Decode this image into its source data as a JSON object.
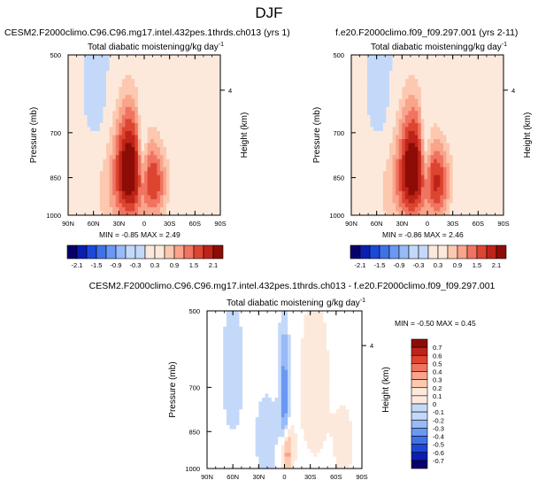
{
  "title": "DJF",
  "colors": {
    "div_scale": [
      "#08006a",
      "#0a1fb0",
      "#1c48d8",
      "#3f72e8",
      "#6b98f2",
      "#98baf6",
      "#c4d9fa",
      "#ffffff",
      "#fde9dc",
      "#fcc9b0",
      "#f9a48b",
      "#f07461",
      "#dc4530",
      "#be2319",
      "#8e0c06"
    ],
    "diff_scale": [
      "#08006a",
      "#0a1fb0",
      "#1c48d8",
      "#3f72e8",
      "#6b98f2",
      "#98baf6",
      "#c4d9fa",
      "#ffffff",
      "#fde9dc",
      "#fcc9b0",
      "#f9a48b",
      "#f07461",
      "#dc4530",
      "#be2319",
      "#8e0c06"
    ]
  },
  "chart_data": [
    {
      "type": "heatmap",
      "title": "CESM2.F2000climo.C96.C96.mg17.intel.432pes.1thrds.ch013 (yrs 1)",
      "field": "Total diabatic moistening",
      "units": "g/kg day",
      "units_exp": "-1",
      "xlabel": "",
      "ylabel": "Pressure (mb)",
      "right_label": "Height (km)",
      "right_tick": "4",
      "x_ticks": [
        "90N",
        "60N",
        "30N",
        "0",
        "30S",
        "60S",
        "90S"
      ],
      "y_ticks": [
        "500",
        "700",
        "850",
        "1000"
      ],
      "ylim": [
        1000,
        500
      ],
      "stats": {
        "min_label": "MIN =",
        "min": "-0.85",
        "max_label": "MAX =",
        "max": "2.49"
      },
      "colorbar_ticks": [
        "-2.1",
        "-1.5",
        "-0.9",
        "-0.3",
        "0.3",
        "0.9",
        "1.5",
        "2.1"
      ],
      "features": [
        {
          "lat": 18,
          "p": 820,
          "value": 2.3,
          "sx": 12,
          "sp": 150
        },
        {
          "lat": -12,
          "p": 870,
          "value": 1.5,
          "sx": 11,
          "sp": 110
        },
        {
          "lat": 2,
          "p": 760,
          "value": -0.8,
          "sx": 4,
          "sp": 120
        },
        {
          "lat": 55,
          "p": 580,
          "value": -0.25,
          "sx": 8,
          "sp": 120
        },
        {
          "lat": -50,
          "p": 700,
          "value": 0.3,
          "sx": 12,
          "sp": 200
        },
        {
          "lat": 45,
          "p": 900,
          "value": 0.5,
          "sx": 14,
          "sp": 140
        }
      ]
    },
    {
      "type": "heatmap",
      "title": "f.e20.F2000climo.f09_f09.297.001 (yrs 2-11)",
      "field": "Total diabatic moistening",
      "units": "g/kg day",
      "units_exp": "-1",
      "xlabel": "",
      "ylabel": "Pressure (mb)",
      "right_label": "Height (km)",
      "right_tick": "4",
      "x_ticks": [
        "90N",
        "60N",
        "30N",
        "0",
        "30S",
        "60S",
        "90S"
      ],
      "y_ticks": [
        "500",
        "700",
        "850",
        "1000"
      ],
      "ylim": [
        1000,
        500
      ],
      "stats": {
        "min_label": "MIN =",
        "min": "-0.86",
        "max_label": "MAX =",
        "max": "2.46"
      },
      "colorbar_ticks": [
        "-2.1",
        "-1.5",
        "-0.9",
        "-0.3",
        "0.3",
        "0.9",
        "1.5",
        "2.1"
      ],
      "features": [
        {
          "lat": 18,
          "p": 820,
          "value": 2.25,
          "sx": 12,
          "sp": 150
        },
        {
          "lat": -12,
          "p": 870,
          "value": 1.6,
          "sx": 11,
          "sp": 110
        },
        {
          "lat": 2,
          "p": 760,
          "value": -0.8,
          "sx": 4,
          "sp": 120
        },
        {
          "lat": 55,
          "p": 580,
          "value": -0.25,
          "sx": 8,
          "sp": 120
        },
        {
          "lat": -50,
          "p": 700,
          "value": 0.3,
          "sx": 12,
          "sp": 200
        },
        {
          "lat": 45,
          "p": 900,
          "value": 0.5,
          "sx": 14,
          "sp": 140
        }
      ]
    },
    {
      "type": "heatmap",
      "title": "CESM2.F2000climo.C96.C96.mg17.intel.432pes.1thrds.ch013 - f.e20.F2000climo.f09_f09.297.001",
      "field": "Total diabatic moistening",
      "units": "g/kg day",
      "units_exp": "-1",
      "xlabel": "",
      "ylabel": "Pressure (mb)",
      "right_label": "Height (km)",
      "right_tick": "4",
      "x_ticks": [
        "90N",
        "60N",
        "30N",
        "0",
        "30S",
        "60S",
        "90S"
      ],
      "y_ticks": [
        "500",
        "700",
        "850",
        "1000"
      ],
      "ylim": [
        1000,
        500
      ],
      "stats": {
        "min_label": "MIN =",
        "min": "-0.50",
        "max_label": "MAX =",
        "max": "0.45"
      },
      "colorbar_ticks": [
        "0.7",
        "0.6",
        "0.5",
        "0.4",
        "0.3",
        "0.2",
        "0.1",
        "0",
        "-0.1",
        "-0.2",
        "-0.3",
        "-0.4",
        "-0.5",
        "-0.6",
        "-0.7"
      ],
      "features": [
        {
          "lat": 0,
          "p": 740,
          "value": -0.35,
          "sx": 4,
          "sp": 160
        },
        {
          "lat": -2,
          "p": 930,
          "value": 0.4,
          "sx": 5,
          "sp": 70
        },
        {
          "lat": 20,
          "p": 880,
          "value": -0.12,
          "sx": 10,
          "sp": 120
        },
        {
          "lat": -35,
          "p": 700,
          "value": 0.08,
          "sx": 18,
          "sp": 250
        },
        {
          "lat": 60,
          "p": 650,
          "value": -0.08,
          "sx": 12,
          "sp": 200
        },
        {
          "lat": -70,
          "p": 900,
          "value": 0.1,
          "sx": 8,
          "sp": 100
        }
      ]
    }
  ]
}
